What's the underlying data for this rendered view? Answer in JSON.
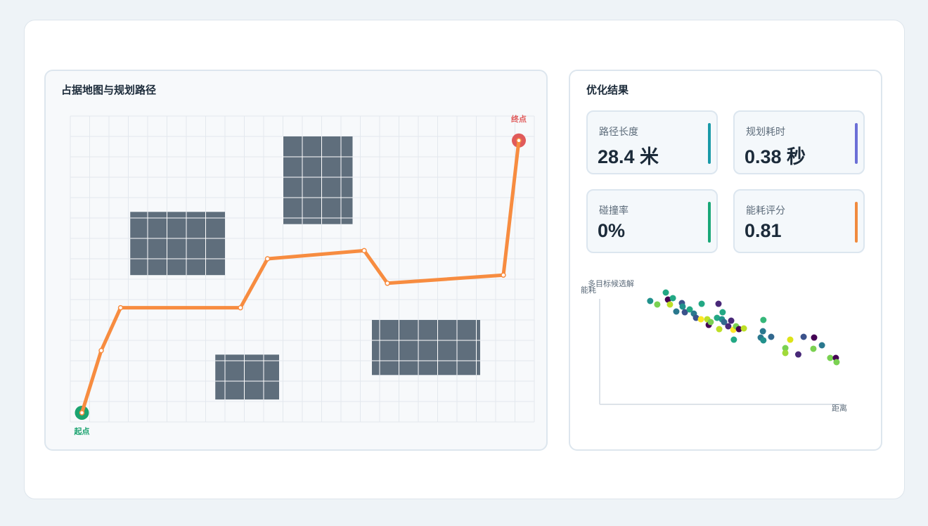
{
  "map": {
    "title": "占据地图与规划路径",
    "xlim": [
      0,
      24
    ],
    "ylim": [
      0,
      15
    ],
    "path": {
      "x": [
        0.6,
        1.6,
        2.6,
        8.8,
        10.2,
        15.2,
        16.4,
        22.4,
        23.2
      ],
      "y": [
        0.45,
        3.5,
        5.6,
        5.6,
        8.0,
        8.4,
        6.8,
        7.2,
        13.8
      ],
      "color": "#f78c40"
    },
    "start_label": "起点",
    "start_color": "#1aa36f",
    "end_label": "终点",
    "end_color": "#e05a5a",
    "obstacles": [
      [
        3.1,
        7.2,
        8.0,
        10.3
      ],
      [
        11.0,
        9.7,
        14.6,
        14.0
      ],
      [
        7.5,
        1.1,
        10.8,
        3.3
      ],
      [
        15.6,
        2.3,
        21.2,
        5.0
      ]
    ],
    "obstacle_color": "#5f6e7c"
  },
  "results": {
    "title": "优化结果",
    "metrics": [
      {
        "label": "路径长度",
        "value": "28.4 米",
        "color": "#1a9aa8"
      },
      {
        "label": "规划耗时",
        "value": "0.38 秒",
        "color": "#6b6fd6"
      },
      {
        "label": "碰撞率",
        "value": "0%",
        "color": "#1aa878"
      },
      {
        "label": "能耗评分",
        "value": "0.81",
        "color": "#f08a3e"
      }
    ]
  },
  "scatter": {
    "title": "多目标候选解",
    "x_label": "距离",
    "y_label": "能耗",
    "xlim": [
      0,
      100
    ],
    "ylim": [
      0,
      100
    ],
    "x": [
      20.7,
      23.6,
      27.1,
      28.0,
      28.8,
      30.0,
      31.4,
      33.7,
      34.0,
      34.9,
      36.9,
      38.6,
      39.5,
      41.5,
      41.8,
      44.1,
      44.7,
      45.5,
      48.1,
      48.7,
      49.0,
      50.1,
      50.4,
      51.0,
      52.7,
      53.9,
      54.8,
      55.0,
      55.9,
      57.1,
      59.1,
      66.9,
      67.1,
      66.0,
      67.1,
      70.3,
      76.1,
      76.1,
      78.1,
      81.4,
      83.6,
      87.6,
      87.9,
      91.1,
      94.5,
      96.8,
      97.1
    ],
    "y": [
      98.0,
      94.7,
      106.0,
      99.3,
      94.7,
      100.7,
      88.0,
      96.0,
      92.7,
      87.3,
      90.0,
      86.0,
      82.0,
      80.7,
      95.3,
      80.7,
      75.3,
      78.0,
      82.0,
      95.3,
      71.3,
      80.7,
      87.3,
      78.0,
      74.0,
      79.3,
      70.7,
      61.3,
      74.0,
      71.3,
      72.0,
      69.3,
      80.0,
      63.3,
      60.7,
      64.0,
      53.3,
      48.7,
      61.3,
      47.3,
      64.0,
      52.7,
      63.3,
      56.0,
      44.0,
      44.0,
      40.0
    ],
    "colors": [
      "#21918c",
      "#7ad151",
      "#22a884",
      "#440154",
      "#bddf26",
      "#22a884",
      "#2a788e",
      "#3b528b",
      "#21918c",
      "#3b528b",
      "#22a884",
      "#2a788e",
      "#3b528b",
      "#fde725",
      "#22a884",
      "#bddf26",
      "#440154",
      "#7ad151",
      "#22a884",
      "#482878",
      "#bddf26",
      "#21918c",
      "#22a884",
      "#31688e",
      "#482878",
      "#482878",
      "#fde725",
      "#22a884",
      "#7ad151",
      "#440154",
      "#bddf26",
      "#2a788e",
      "#35b779",
      "#2a788e",
      "#21918c",
      "#31688e",
      "#7ad151",
      "#a0da39",
      "#dde318",
      "#482878",
      "#3b528b",
      "#7ad151",
      "#440154",
      "#2a788e",
      "#7ad151",
      "#440154",
      "#7ad151"
    ]
  }
}
